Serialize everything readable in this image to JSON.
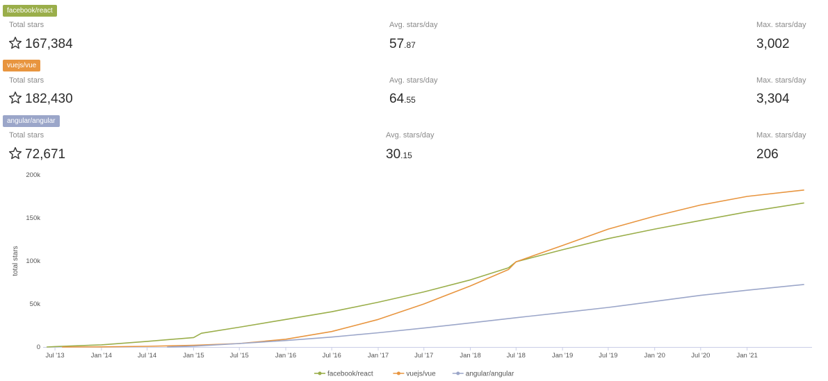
{
  "repos": [
    {
      "name": "facebook/react",
      "color": "#9aae4a",
      "total_label": "Total stars",
      "total_value": "167,384",
      "avg_label": "Avg. stars/day",
      "avg_int": "57",
      "avg_frac": ".87",
      "max_label": "Max. stars/day",
      "max_value": "3,002",
      "icon": "star-outline-icon"
    },
    {
      "name": "vuejs/vue",
      "color": "#e8953f",
      "total_label": "Total stars",
      "total_value": "182,430",
      "avg_label": "Avg. stars/day",
      "avg_int": "64",
      "avg_frac": ".55",
      "max_label": "Max. stars/day",
      "max_value": "3,304",
      "icon": "star-outline-icon"
    },
    {
      "name": "angular/angular",
      "color": "#9ba6c9",
      "total_label": "Total stars",
      "total_value": "72,671",
      "avg_label": "Avg. stars/day",
      "avg_int": "30",
      "avg_frac": ".15",
      "max_label": "Max. stars/day",
      "max_value": "206",
      "icon": "star-outline-icon"
    }
  ],
  "chart_data": {
    "type": "line",
    "title": "",
    "xlabel": "",
    "ylabel": "total stars",
    "x_range": [
      "2013-05-15",
      "2021-09-15"
    ],
    "ylim": [
      0,
      200000
    ],
    "y_ticks": [
      0,
      50000,
      100000,
      150000,
      200000
    ],
    "y_tick_labels": [
      "0",
      "50k",
      "100k",
      "150k",
      "200k"
    ],
    "x_ticks": [
      "2013-07-01",
      "2014-01-01",
      "2014-07-01",
      "2015-01-01",
      "2015-07-01",
      "2016-01-01",
      "2016-07-01",
      "2017-01-01",
      "2017-07-01",
      "2018-01-01",
      "2018-07-01",
      "2019-01-01",
      "2019-07-01",
      "2020-01-01",
      "2020-07-01",
      "2021-01-01"
    ],
    "x_tick_labels": [
      "Jul '13",
      "Jan '14",
      "Jul '14",
      "Jan '15",
      "Jul '15",
      "Jan '16",
      "Jul '16",
      "Jan '17",
      "Jul '17",
      "Jan '18",
      "Jul '18",
      "Jan '19",
      "Jul '19",
      "Jan '20",
      "Jul '20",
      "Jan '21"
    ],
    "grid": false,
    "legend_position": "bottom",
    "series": [
      {
        "name": "facebook/react",
        "color": "#9aae4a",
        "x": [
          "2013-05-29",
          "2013-07-01",
          "2014-01-01",
          "2014-07-01",
          "2015-01-01",
          "2015-02-01",
          "2015-07-01",
          "2016-01-01",
          "2016-07-01",
          "2017-01-01",
          "2017-07-01",
          "2018-01-01",
          "2018-06-01",
          "2018-07-01",
          "2019-01-01",
          "2019-07-01",
          "2020-01-01",
          "2020-07-01",
          "2021-01-01",
          "2021-08-15"
        ],
        "y": [
          0,
          500,
          2500,
          6500,
          11000,
          16000,
          23000,
          32000,
          41000,
          52000,
          64000,
          78000,
          92000,
          99000,
          113000,
          126000,
          137000,
          147000,
          157000,
          167384
        ]
      },
      {
        "name": "vuejs/vue",
        "color": "#e8953f",
        "x": [
          "2013-07-29",
          "2014-01-01",
          "2014-07-01",
          "2015-01-01",
          "2015-07-01",
          "2016-01-01",
          "2016-07-01",
          "2017-01-01",
          "2017-07-01",
          "2018-01-01",
          "2018-06-01",
          "2018-07-01",
          "2019-01-01",
          "2019-07-01",
          "2020-01-01",
          "2020-07-01",
          "2021-01-01",
          "2021-08-15"
        ],
        "y": [
          0,
          200,
          800,
          2000,
          4000,
          9000,
          18000,
          32000,
          50000,
          71000,
          90000,
          99000,
          118000,
          137000,
          152000,
          165000,
          175000,
          182430
        ]
      },
      {
        "name": "angular/angular",
        "color": "#9ba6c9",
        "x": [
          "2014-09-18",
          "2015-01-01",
          "2015-07-01",
          "2016-01-01",
          "2016-07-01",
          "2017-01-01",
          "2017-07-01",
          "2018-01-01",
          "2018-07-01",
          "2019-01-01",
          "2019-07-01",
          "2020-01-01",
          "2020-07-01",
          "2021-01-01",
          "2021-08-15"
        ],
        "y": [
          0,
          1000,
          4000,
          7500,
          11500,
          16500,
          22000,
          28000,
          34000,
          40000,
          46000,
          53000,
          60000,
          66000,
          72671
        ]
      }
    ]
  }
}
